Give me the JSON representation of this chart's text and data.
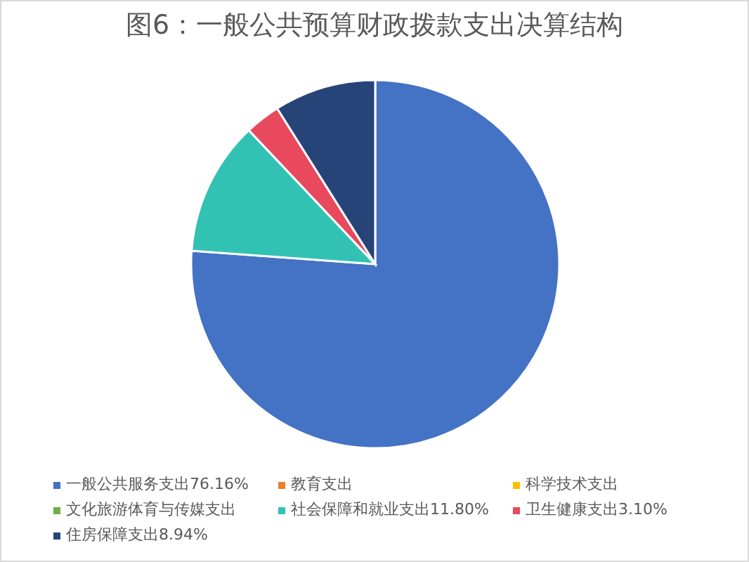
{
  "chart_data": {
    "type": "pie",
    "title": "图6：一般公共预算财政拨款支出决算结构",
    "categories": [
      "一般公共服务支出",
      "教育支出",
      "科学技术支出",
      "文化旅游体育与传媒支出",
      "社会保障和就业支出",
      "卫生健康支出",
      "住房保障支出"
    ],
    "values": [
      76.16,
      0,
      0,
      0,
      11.8,
      3.1,
      8.94
    ],
    "value_labels": [
      "76.16%",
      null,
      null,
      null,
      "11.80%",
      "3.10%",
      "8.94%"
    ],
    "colors": [
      "#4472c4",
      "#ed7d31",
      "#ffc000",
      "#70ad47",
      "#31c2b3",
      "#e8495c",
      "#264478"
    ],
    "legend": "bottom"
  }
}
